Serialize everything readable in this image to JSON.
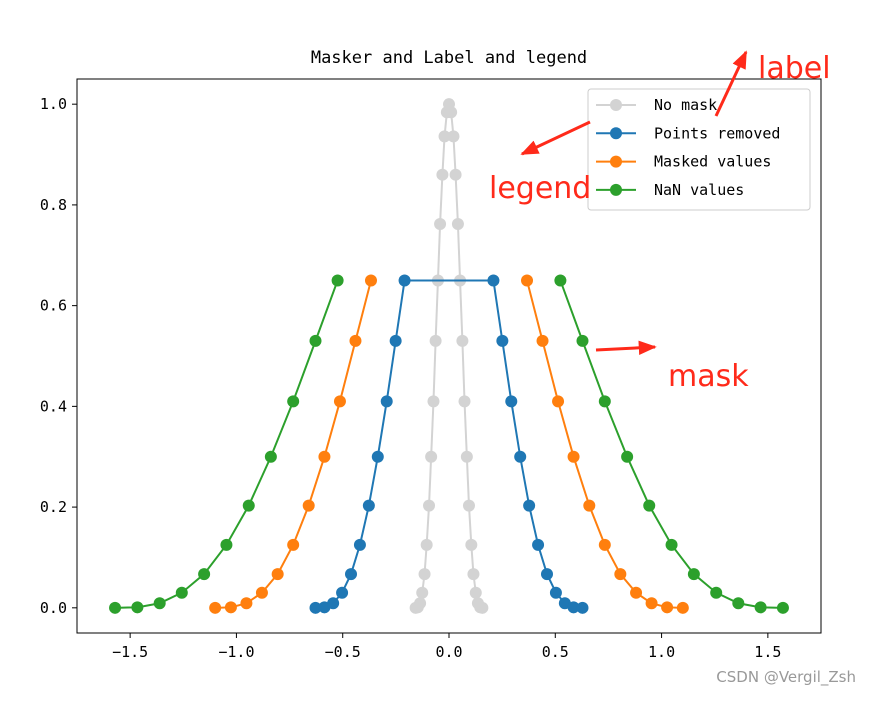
{
  "chart_data": {
    "type": "line",
    "title": "Masker and Label and legend",
    "xlim": [
      -1.75,
      1.75
    ],
    "ylim": [
      -0.05,
      1.05
    ],
    "xticks": [
      {
        "value": -1.5,
        "label": "−1.5"
      },
      {
        "value": -1.0,
        "label": "−1.0"
      },
      {
        "value": -0.5,
        "label": "−0.5"
      },
      {
        "value": 0,
        "label": "0.0"
      },
      0.5,
      {
        "value": 1.0,
        "label": "1.0"
      },
      1.5
    ],
    "yticks": [
      {
        "value": 0,
        "label": "0.0"
      },
      0.2,
      0.4,
      0.6,
      0.8,
      {
        "value": 1.0,
        "label": "1.0"
      }
    ],
    "legend": "upper right",
    "series": [
      {
        "name": "No mask",
        "color": "#d3d3d3",
        "x": [
          -0.157,
          -0.147,
          -0.136,
          -0.126,
          -0.115,
          -0.105,
          -0.094,
          -0.084,
          -0.073,
          -0.063,
          -0.052,
          -0.042,
          -0.031,
          -0.021,
          -0.01,
          0,
          0.01,
          0.021,
          0.031,
          0.042,
          0.052,
          0.063,
          0.073,
          0.084,
          0.094,
          0.105,
          0.115,
          0.126,
          0.136,
          0.147,
          0.157
        ],
        "values": [
          0,
          0.001,
          0.009,
          0.03,
          0.067,
          0.125,
          0.203,
          0.3,
          0.41,
          0.53,
          0.65,
          0.762,
          0.86,
          0.936,
          0.984,
          1,
          0.984,
          0.936,
          0.86,
          0.762,
          0.65,
          0.53,
          0.41,
          0.3,
          0.203,
          0.125,
          0.067,
          0.03,
          0.009,
          0.001,
          0
        ]
      },
      {
        "name": "Points removed",
        "color": "#1f77b4",
        "x": [
          -0.628,
          -0.586,
          -0.545,
          -0.503,
          -0.461,
          -0.419,
          -0.377,
          -0.335,
          -0.293,
          -0.251,
          -0.209,
          0.209,
          0.251,
          0.293,
          0.335,
          0.377,
          0.419,
          0.461,
          0.503,
          0.545,
          0.586,
          0.628
        ],
        "values": [
          0,
          0.001,
          0.009,
          0.03,
          0.067,
          0.125,
          0.203,
          0.3,
          0.41,
          0.53,
          0.65,
          0.65,
          0.53,
          0.41,
          0.3,
          0.203,
          0.125,
          0.067,
          0.03,
          0.009,
          0.001,
          0
        ]
      },
      {
        "name": "Masked values",
        "color": "#ff7f0e",
        "x": [
          -1.1,
          -1.026,
          -0.953,
          -0.88,
          -0.806,
          -0.733,
          -0.66,
          -0.586,
          -0.513,
          -0.44,
          -0.367,
          -0.293,
          -0.22,
          -0.147,
          -0.073,
          0,
          0.073,
          0.147,
          0.22,
          0.293,
          0.367,
          0.44,
          0.513,
          0.586,
          0.66,
          0.733,
          0.806,
          0.88,
          0.953,
          1.026,
          1.1
        ],
        "values": [
          0,
          0.001,
          0.009,
          0.03,
          0.067,
          0.125,
          0.203,
          0.3,
          0.41,
          0.53,
          0.65,
          null,
          null,
          null,
          null,
          null,
          null,
          null,
          null,
          null,
          0.65,
          0.53,
          0.41,
          0.3,
          0.203,
          0.125,
          0.067,
          0.03,
          0.009,
          0.001,
          0
        ]
      },
      {
        "name": "NaN values",
        "color": "#2ca02c",
        "x": [
          -1.571,
          -1.466,
          -1.361,
          -1.257,
          -1.152,
          -1.047,
          -0.942,
          -0.838,
          -0.733,
          -0.628,
          -0.524,
          -0.419,
          -0.314,
          -0.209,
          -0.105,
          0,
          0.105,
          0.209,
          0.314,
          0.419,
          0.524,
          0.628,
          0.733,
          0.838,
          0.942,
          1.047,
          1.152,
          1.257,
          1.361,
          1.466,
          1.571
        ],
        "values": [
          0,
          0.001,
          0.009,
          0.03,
          0.067,
          0.125,
          0.203,
          0.3,
          0.41,
          0.53,
          0.65,
          null,
          null,
          null,
          null,
          null,
          null,
          null,
          null,
          null,
          0.65,
          0.53,
          0.41,
          0.3,
          0.203,
          0.125,
          0.067,
          0.03,
          0.009,
          0.001,
          0
        ]
      }
    ],
    "annotations": [
      "label",
      "legend",
      "mask"
    ],
    "watermark": "CSDN @Vergil_Zsh"
  }
}
